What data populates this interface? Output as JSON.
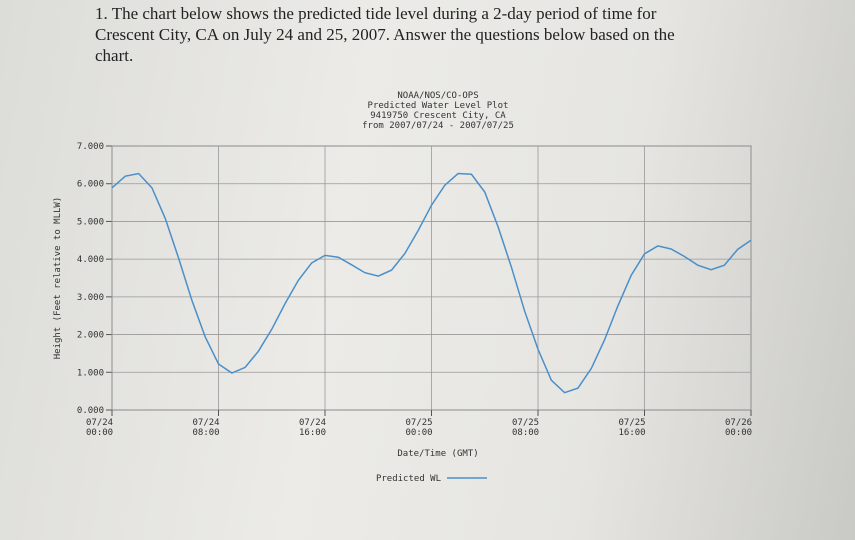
{
  "question": [
    "1. The chart below shows the predicted tide level during a 2-day period of time for",
    "Crescent City, CA on July 24 and 25, 2007. Answer the questions below based on the",
    "chart."
  ],
  "chart_data": {
    "type": "line",
    "title": [
      "NOAA/NOS/CO-OPS",
      "Predicted Water Level Plot",
      "9419750 Crescent City, CA",
      "from 2007/07/24 - 2007/07/25"
    ],
    "xlabel": "Date/Time (GMT)",
    "ylabel": "Height (Feet relative to MLLW)",
    "x": [
      0,
      1,
      2,
      3,
      4,
      5,
      6,
      7,
      8,
      9,
      10,
      11,
      12,
      13,
      14,
      15,
      16,
      17,
      18,
      19,
      20,
      21,
      22,
      23,
      24,
      25,
      26,
      27,
      28,
      29,
      30,
      31,
      32,
      33,
      34,
      35,
      36,
      37,
      38,
      39,
      40,
      41,
      42,
      43,
      44,
      45,
      46,
      47,
      48
    ],
    "series": [
      {
        "name": "Predicted WL",
        "color": "#4a8fc9",
        "values": [
          5.89,
          6.2,
          6.27,
          5.89,
          5.08,
          4.03,
          2.91,
          1.94,
          1.22,
          0.98,
          1.13,
          1.56,
          2.14,
          2.82,
          3.44,
          3.9,
          4.1,
          4.05,
          3.85,
          3.64,
          3.55,
          3.71,
          4.15,
          4.76,
          5.43,
          5.96,
          6.27,
          6.25,
          5.78,
          4.86,
          3.79,
          2.62,
          1.61,
          0.79,
          0.46,
          0.58,
          1.1,
          1.86,
          2.76,
          3.57,
          4.14,
          4.35,
          4.27,
          4.07,
          3.84,
          3.72,
          3.84,
          4.26,
          4.5
        ]
      }
    ],
    "xlim": [
      0,
      48
    ],
    "xticks": [
      {
        "value": 0,
        "label": "07/24 00:00"
      },
      {
        "value": 8,
        "label": "07/24 08:00"
      },
      {
        "value": 16,
        "label": "07/24 16:00"
      },
      {
        "value": 24,
        "label": "07/25 00:00"
      },
      {
        "value": 32,
        "label": "07/25 08:00"
      },
      {
        "value": 40,
        "label": "07/25 16:00"
      },
      {
        "value": 48,
        "label": "07/26 00:00"
      }
    ],
    "ylim": [
      0,
      7
    ],
    "yticks": [
      {
        "value": 0,
        "label": "0.000"
      },
      {
        "value": 1,
        "label": "1.000"
      },
      {
        "value": 2,
        "label": "2.000"
      },
      {
        "value": 3,
        "label": "3.000"
      },
      {
        "value": 4,
        "label": "4.000"
      },
      {
        "value": 5,
        "label": "5.000"
      },
      {
        "value": 6,
        "label": "6.000"
      },
      {
        "value": 7,
        "label": "7.000"
      }
    ],
    "grid": true
  }
}
